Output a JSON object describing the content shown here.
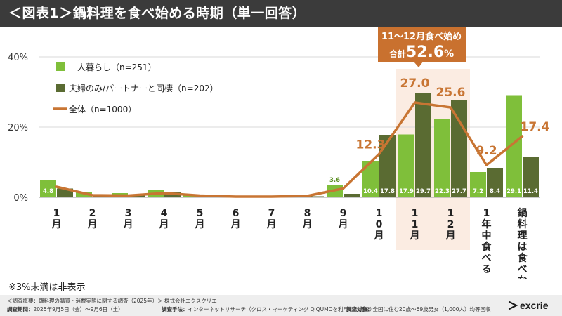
{
  "header": {
    "title": "＜図表1＞鍋料理を食べ始める時期（単一回答）"
  },
  "chart_data": {
    "type": "bar+line",
    "categories": [
      "1月",
      "2月",
      "3月",
      "4月",
      "5月",
      "6月",
      "7月",
      "8月",
      "9月",
      "10月",
      "11月",
      "12月",
      "1年中食べる",
      "鍋料理は食べない"
    ],
    "category_labels": [
      "1\n月",
      "2\n月",
      "3\n月",
      "4\n月",
      "5\n月",
      "6\n月",
      "7\n月",
      "8\n月",
      "9\n月",
      "1\n0\n月",
      "1\n1\n月",
      "1\n2\n月",
      "1\n年\n中\n食\nべ\nる",
      "鍋\n料\n理\nは\n食\nべ\nな\nい"
    ],
    "yticks": [
      "0%",
      "20%",
      "40%"
    ],
    "ylim": [
      0,
      40
    ],
    "series": [
      {
        "name": "一人暮らし（n=251）",
        "type": "bar",
        "color": "#7fbf3a",
        "values": [
          4.8,
          1.5,
          1.2,
          2.0,
          0.6,
          0.4,
          0.3,
          0.6,
          3.6,
          10.4,
          17.9,
          22.3,
          7.2,
          29.1
        ],
        "labels": [
          "4.8",
          "",
          "",
          "",
          "",
          "",
          "",
          "",
          "3.6",
          "10.4",
          "17.9",
          "22.3",
          "7.2",
          "29.1"
        ]
      },
      {
        "name": "夫婦のみ/パートナーと同棲（n=202）",
        "type": "bar",
        "color": "#5a6b32",
        "values": [
          2.5,
          0.5,
          0.5,
          1.5,
          0.3,
          0.2,
          0.2,
          0.3,
          1.0,
          17.8,
          29.7,
          27.7,
          8.4,
          11.4
        ],
        "labels": [
          "",
          "",
          "",
          "",
          "",
          "",
          "",
          "",
          "",
          "17.8",
          "29.7",
          "27.7",
          "8.4",
          "11.4"
        ]
      },
      {
        "name": "全体（n=1000）",
        "type": "line",
        "color": "#c87533",
        "values": [
          3.0,
          0.6,
          0.5,
          1.2,
          0.5,
          0.2,
          0.2,
          0.4,
          2.5,
          12.3,
          27.0,
          25.6,
          9.2,
          17.4
        ],
        "labels": [
          "",
          "",
          "",
          "",
          "",
          "",
          "",
          "",
          "",
          "12.3",
          "27.0",
          "25.6",
          "9.2",
          "17.4"
        ]
      }
    ],
    "callout": {
      "line1": "11～12月食べ始め",
      "prefix": "合計",
      "value": "52.6",
      "suffix": "%"
    },
    "highlight_categories": [
      "11月",
      "12月"
    ]
  },
  "note": "※3%未満は非表示",
  "footer": {
    "survey": "＜調査概要：鍋料理の購買・消費実態に関する調査（2025年）＞ 株式会社エクスクリエ",
    "period_label": "調査期間：",
    "period": "2025年9月5日（金）～9月6日（土）",
    "method_label": "調査手法：",
    "method": "インターネットリサーチ（クロス・マーケティング QiQUMOを利用した調査）",
    "target_label": "調査対象：",
    "target": "全国に住む20歳～69歳男女（1,000人）均等回収",
    "logo": "excrie"
  }
}
